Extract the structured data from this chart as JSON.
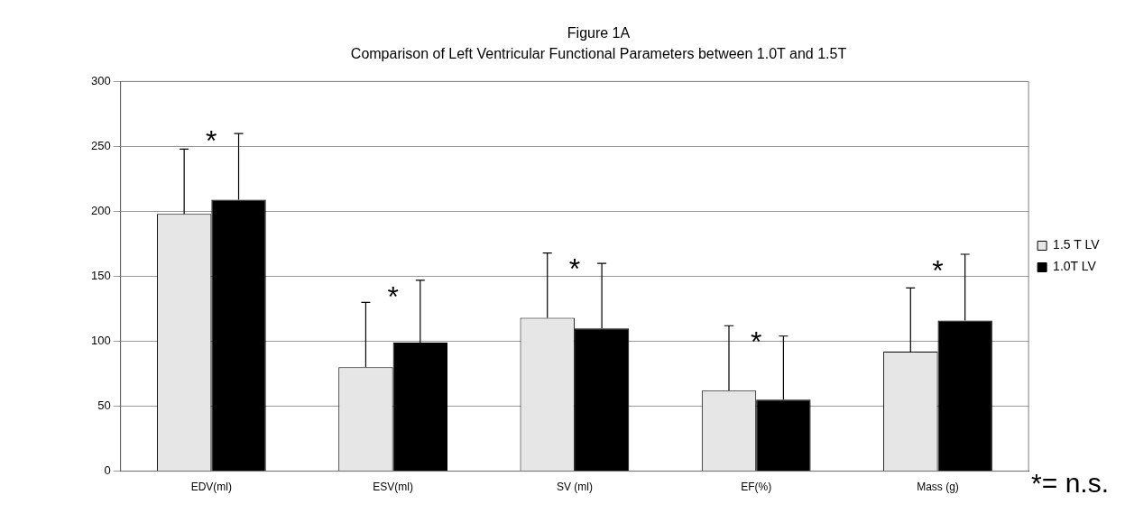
{
  "chart_data": {
    "type": "bar",
    "title": "Figure 1A",
    "subtitle": "Comparison of Left Ventricular Functional Parameters between 1.0T and 1.5T",
    "categories": [
      "EDV(ml)",
      "ESV(ml)",
      "SV (ml)",
      "EF(%)",
      "Mass (g)"
    ],
    "series": [
      {
        "name": "1.5 T LV",
        "color": "#e6e6e6",
        "values": [
          198,
          80,
          118,
          62,
          92
        ],
        "errors": [
          [
            198,
            248
          ],
          [
            80,
            130
          ],
          [
            118,
            168
          ],
          [
            62,
            112
          ],
          [
            92,
            141
          ]
        ]
      },
      {
        "name": "1.0T LV",
        "color": "#000000",
        "values": [
          209,
          99,
          110,
          55,
          116
        ],
        "errors": [
          [
            209,
            260
          ],
          [
            99,
            147
          ],
          [
            110,
            160
          ],
          [
            55,
            104
          ],
          [
            116,
            167
          ]
        ]
      }
    ],
    "ylim": [
      0,
      300
    ],
    "yticks": [
      0,
      50,
      100,
      150,
      200,
      250,
      300
    ],
    "grid": "y",
    "legend": "right",
    "annotations": [
      "*",
      "*",
      "*",
      "*",
      "*",
      "*= n.s."
    ]
  }
}
